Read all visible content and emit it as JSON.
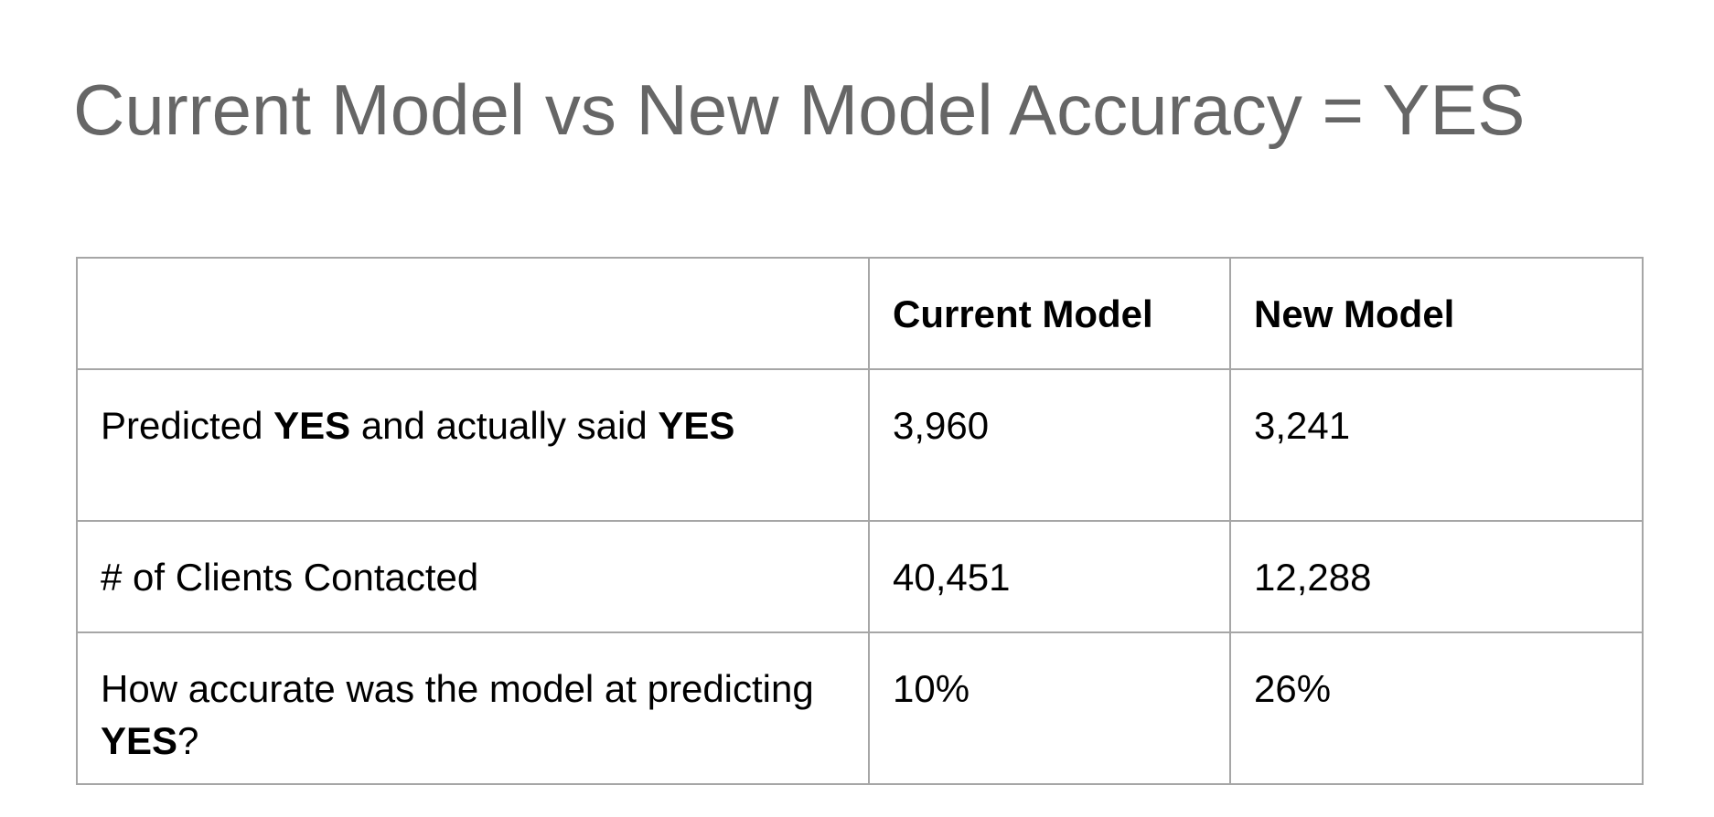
{
  "title": "Current Model vs New Model Accuracy = YES",
  "table": {
    "header": {
      "corner": "",
      "current": "Current Model",
      "new": "New Model"
    },
    "rows": [
      {
        "label_parts": [
          "Predicted ",
          "YES",
          " and actually said ",
          "YES"
        ],
        "current": "3,960",
        "new": "3,241"
      },
      {
        "label": "# of Clients Contacted",
        "current": "40,451",
        "new": "12,288"
      },
      {
        "label_parts": [
          "How accurate was the model at predicting ",
          "YES",
          "?"
        ],
        "current": "10%",
        "new": "26%"
      }
    ]
  }
}
